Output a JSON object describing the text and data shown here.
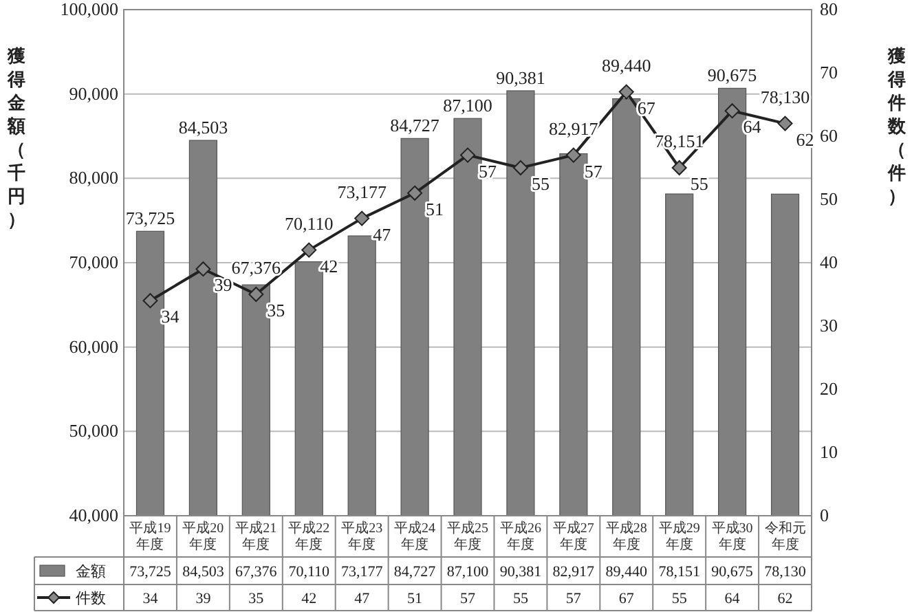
{
  "chart_data": {
    "type": "bar",
    "categories": [
      "平成19年度",
      "平成20年度",
      "平成21年度",
      "平成22年度",
      "平成23年度",
      "平成24年度",
      "平成25年度",
      "平成26年度",
      "平成27年度",
      "平成28年度",
      "平成29年度",
      "平成30年度",
      "令和元年度"
    ],
    "series": [
      {
        "name": "金額",
        "color": "#808080",
        "values": [
          73725,
          84503,
          67376,
          70110,
          73177,
          84727,
          87100,
          90381,
          82917,
          89440,
          78151,
          90675,
          78130
        ],
        "value_labels": [
          "73,725",
          "84,503",
          "67,376",
          "70,110",
          "73,177",
          "84,727",
          "87,100",
          "90,381",
          "82,917",
          "89,440",
          "78,151",
          "90,675",
          "78,130"
        ]
      },
      {
        "name": "件数",
        "type": "line",
        "axis": "y2",
        "color": "#222222",
        "values": [
          34,
          39,
          35,
          42,
          47,
          51,
          57,
          55,
          57,
          67,
          55,
          64,
          62
        ],
        "value_labels": [
          "34",
          "39",
          "35",
          "42",
          "47",
          "51",
          "57",
          "55",
          "57",
          "67",
          "55",
          "64",
          "62"
        ]
      }
    ],
    "ylim": [
      40000,
      100000
    ],
    "yticks": [
      {
        "value": 40000,
        "label": "40,000"
      },
      {
        "value": 50000,
        "label": "50,000"
      },
      {
        "value": 60000,
        "label": "60,000"
      },
      {
        "value": 70000,
        "label": "70,000"
      },
      {
        "value": 80000,
        "label": "80,000"
      },
      {
        "value": 90000,
        "label": "90,000"
      },
      {
        "value": 100000,
        "label": "100,000"
      }
    ],
    "y2lim": [
      0,
      80
    ],
    "y2ticks": [
      0,
      10,
      20,
      30,
      40,
      50,
      60,
      70,
      80
    ],
    "ylabel": "獲得金額（千円）",
    "y2label": "獲得件数（件）",
    "grid": "y",
    "marker": "diamond",
    "legend": "bottom"
  }
}
